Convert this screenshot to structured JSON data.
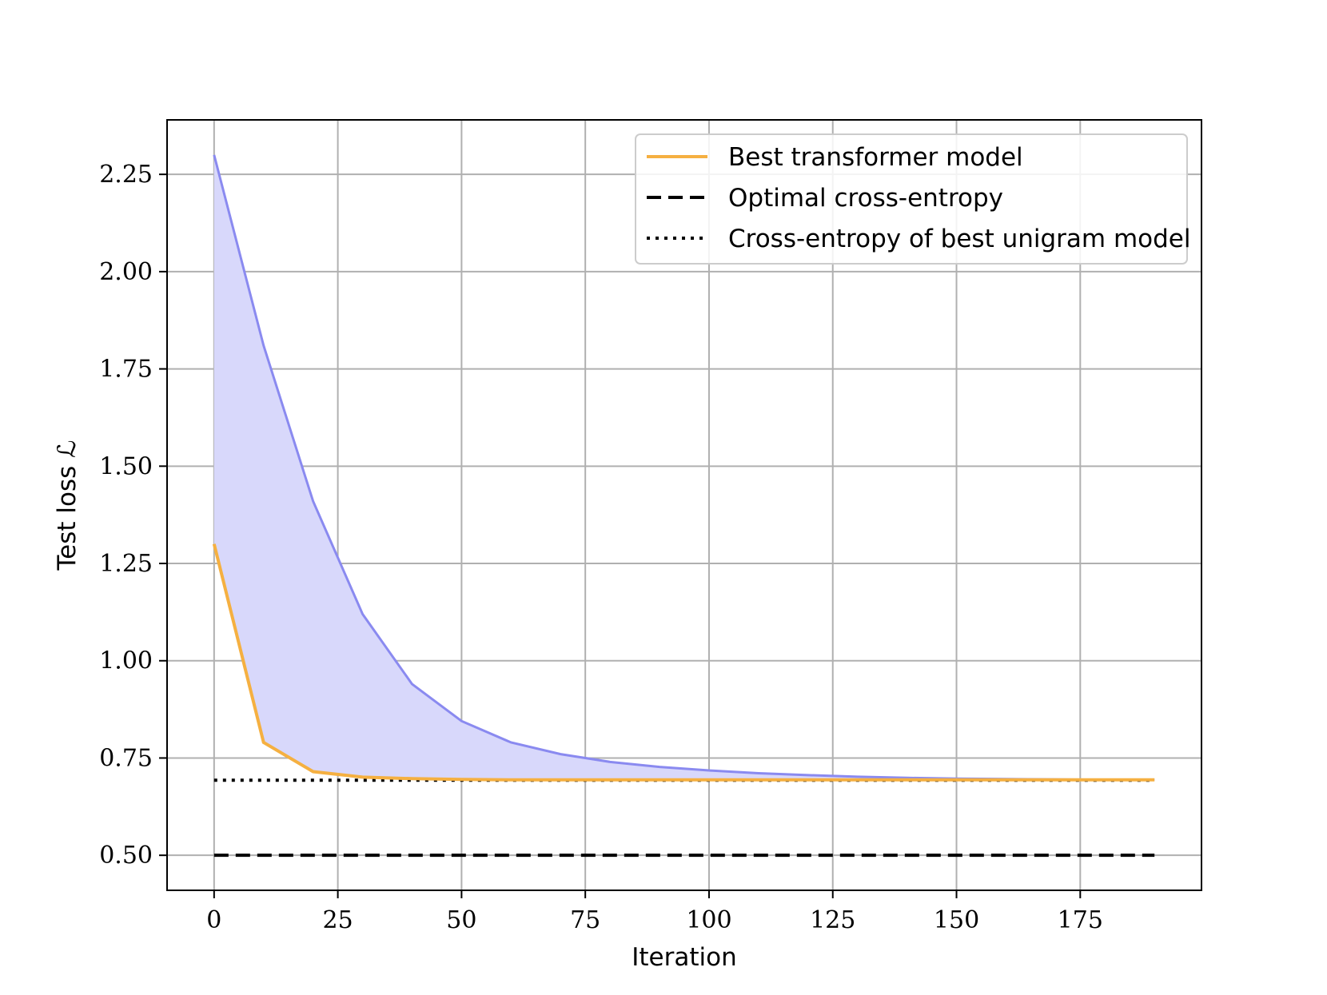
{
  "chart_data": {
    "type": "line",
    "xlabel": "Iteration",
    "ylabel": "Test loss ℒ",
    "xlim": [
      -9.5,
      199.5
    ],
    "ylim": [
      0.41,
      2.39
    ],
    "xticks": [
      0,
      25,
      50,
      75,
      100,
      125,
      150,
      175
    ],
    "xtick_labels": [
      "0",
      "25",
      "50",
      "75",
      "100",
      "125",
      "150",
      "175"
    ],
    "yticks": [
      0.5,
      0.75,
      1.0,
      1.25,
      1.5,
      1.75,
      2.0,
      2.25
    ],
    "ytick_labels": [
      "0.50",
      "0.75",
      "1.00",
      "1.25",
      "1.50",
      "1.75",
      "2.00",
      "2.25"
    ],
    "grid": true,
    "legend_position": "top-right",
    "band": {
      "color": "#d8d8fb",
      "edge_color": "#8a8af0",
      "x": [
        0,
        10,
        20,
        30,
        40,
        50,
        60,
        70,
        80,
        90,
        100,
        110,
        120,
        130,
        140,
        150,
        160,
        170,
        180,
        190
      ],
      "upper": [
        2.3,
        1.81,
        1.41,
        1.12,
        0.94,
        0.845,
        0.79,
        0.76,
        0.74,
        0.727,
        0.718,
        0.711,
        0.706,
        0.702,
        0.699,
        0.697,
        0.696,
        0.695,
        0.694,
        0.694
      ],
      "lower": [
        1.3,
        0.79,
        0.715,
        0.701,
        0.697,
        0.695,
        0.694,
        0.694,
        0.694,
        0.694,
        0.694,
        0.694,
        0.694,
        0.694,
        0.694,
        0.694,
        0.694,
        0.694,
        0.694,
        0.694
      ]
    },
    "series": [
      {
        "name": "Best transformer model",
        "style": "solid",
        "color": "#f5b041",
        "x": [
          0,
          10,
          20,
          30,
          40,
          50,
          60,
          70,
          80,
          90,
          100,
          110,
          120,
          130,
          140,
          150,
          160,
          170,
          180,
          190
        ],
        "values": [
          1.3,
          0.79,
          0.715,
          0.701,
          0.697,
          0.695,
          0.694,
          0.694,
          0.694,
          0.694,
          0.694,
          0.694,
          0.694,
          0.694,
          0.694,
          0.694,
          0.694,
          0.694,
          0.694,
          0.694
        ]
      },
      {
        "name": "Optimal cross-entropy",
        "style": "dashed",
        "color": "#000000",
        "x": [
          0,
          190
        ],
        "values": [
          0.5,
          0.5
        ]
      },
      {
        "name": "Cross-entropy of best unigram model",
        "style": "dotted",
        "color": "#000000",
        "x": [
          0,
          190
        ],
        "values": [
          0.693,
          0.693
        ]
      }
    ]
  }
}
